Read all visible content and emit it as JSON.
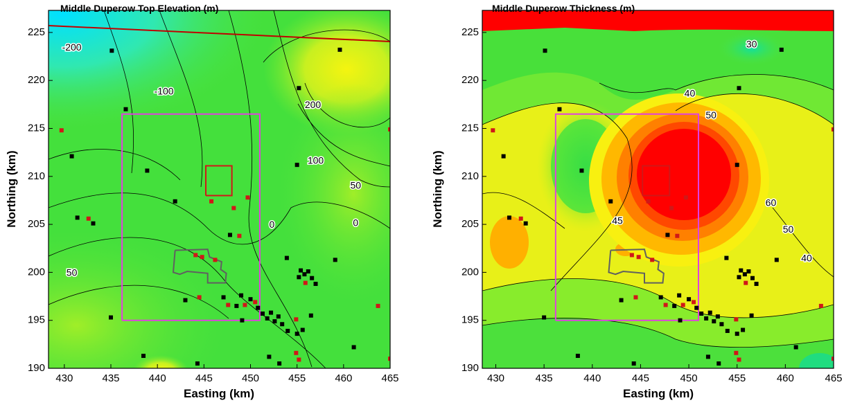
{
  "chart_data": [
    {
      "type": "scatter",
      "title": "Middle Duperow Top Elevation (m)",
      "x_label": "Easting (km)",
      "y_label": "Northing (km)",
      "xlim": [
        428.3,
        465
      ],
      "ylim": [
        190,
        227.3
      ],
      "xticks": [
        430,
        435,
        440,
        445,
        450,
        455,
        460,
        465
      ],
      "yticks": [
        190,
        195,
        200,
        205,
        210,
        215,
        220,
        225
      ],
      "series": [
        {
          "color": "#000000",
          "x": [
            435.1,
            459.6,
            455.2,
            436.6,
            430.8,
            438.9,
            455.0,
            441.9,
            431.4,
            433.1,
            447.8,
            459.1,
            455.4,
            455.8,
            456.2,
            456.6,
            457.0,
            455.2,
            443.0,
            448.5,
            449.1,
            449.0,
            450.0,
            450.8,
            451.3,
            451.8,
            452.2,
            452.6,
            453.0,
            453.4,
            454.0,
            455.0,
            455.6,
            456.5,
            452.0,
            461.1,
            438.5,
            444.3,
            435.0,
            453.9,
            453.1,
            447.1
          ],
          "y": [
            223.1,
            223.2,
            219.2,
            217.0,
            212.1,
            210.6,
            211.2,
            207.4,
            205.7,
            205.1,
            203.9,
            201.3,
            200.2,
            199.8,
            200.1,
            199.4,
            198.8,
            199.5,
            197.1,
            196.5,
            195.0,
            197.6,
            197.2,
            196.3,
            195.7,
            195.2,
            195.8,
            194.9,
            195.4,
            194.6,
            193.9,
            193.6,
            194.0,
            195.5,
            191.2,
            192.2,
            191.3,
            190.5,
            195.3,
            201.5,
            190.5,
            197.4
          ]
        },
        {
          "color": "#d01818",
          "x": [
            429.7,
            449.7,
            445.8,
            448.2,
            448.8,
            432.6,
            444.1,
            444.8,
            446.2,
            444.5,
            447.6,
            449.4,
            450.5,
            455.9,
            454.9,
            463.7,
            455.2,
            454.9,
            465.0,
            465.0
          ],
          "y": [
            214.8,
            207.8,
            207.4,
            206.7,
            203.8,
            205.6,
            201.8,
            201.6,
            201.3,
            197.4,
            196.6,
            196.6,
            196.9,
            198.9,
            195.1,
            196.5,
            190.9,
            191.6,
            191.0,
            214.9
          ]
        }
      ],
      "outlines": [
        {
          "color": "#e040e0",
          "x": [
            436.2,
            451,
            451,
            436.2,
            436.2
          ],
          "y": [
            195,
            195,
            216.5,
            216.5,
            195
          ]
        },
        {
          "color": "#d01818",
          "x": [
            445.2,
            448,
            448,
            445.2,
            445.2
          ],
          "y": [
            208,
            208,
            211.1,
            211.1,
            208
          ]
        },
        {
          "color": "#606060",
          "x": [
            441.9,
            445.4,
            445.6,
            446.9,
            446.8,
            447.4,
            447.3,
            445.4,
            445.4,
            443.2,
            442.4,
            441.7,
            441.9
          ],
          "y": [
            202.3,
            202.4,
            201.6,
            201.1,
            200.3,
            199.9,
            198.9,
            198.9,
            199.9,
            200.1,
            199.8,
            200.0,
            202.3
          ]
        }
      ],
      "annotations": [
        {
          "text": "-200",
          "x": 430.8,
          "y": 223.4
        },
        {
          "text": "-100",
          "x": 440.7,
          "y": 218.8
        },
        {
          "text": "200",
          "x": 456.7,
          "y": 217.4
        },
        {
          "text": "100",
          "x": 457.0,
          "y": 211.6
        },
        {
          "text": "50",
          "x": 461.3,
          "y": 209.0
        },
        {
          "text": "0",
          "x": 452.3,
          "y": 204.9
        },
        {
          "text": "0",
          "x": 461.3,
          "y": 205.1
        },
        {
          "text": "50",
          "x": 430.8,
          "y": 199.9
        }
      ]
    },
    {
      "type": "scatter",
      "title": "Middle Duperow Thickness (m)",
      "x_label": "Easting (km)",
      "y_label": "Northing (km)",
      "xlim": [
        428.6,
        465
      ],
      "ylim": [
        190,
        227.3
      ],
      "xticks": [
        430,
        435,
        440,
        445,
        450,
        455,
        460,
        465
      ],
      "yticks": [
        190,
        195,
        200,
        205,
        210,
        215,
        220,
        225
      ],
      "series": [
        {
          "color": "#000000",
          "x": [
            435.1,
            459.6,
            455.2,
            436.6,
            430.8,
            438.9,
            455.0,
            441.9,
            431.4,
            433.1,
            447.8,
            459.1,
            455.4,
            455.8,
            456.2,
            456.6,
            457.0,
            455.2,
            443.0,
            448.5,
            449.1,
            449.0,
            450.0,
            450.8,
            451.3,
            451.8,
            452.2,
            452.6,
            453.0,
            453.4,
            454.0,
            455.0,
            455.6,
            456.5,
            452.0,
            461.1,
            438.5,
            444.3,
            435.0,
            453.9,
            453.1,
            447.1
          ],
          "y": [
            223.1,
            223.2,
            219.2,
            217.0,
            212.1,
            210.6,
            211.2,
            207.4,
            205.7,
            205.1,
            203.9,
            201.3,
            200.2,
            199.8,
            200.1,
            199.4,
            198.8,
            199.5,
            197.1,
            196.5,
            195.0,
            197.6,
            197.2,
            196.3,
            195.7,
            195.2,
            195.8,
            194.9,
            195.4,
            194.6,
            193.9,
            193.6,
            194.0,
            195.5,
            191.2,
            192.2,
            191.3,
            190.5,
            195.3,
            201.5,
            190.5,
            197.4
          ]
        },
        {
          "color": "#d01818",
          "x": [
            429.7,
            449.7,
            445.8,
            448.2,
            448.8,
            432.6,
            444.1,
            444.8,
            446.2,
            444.5,
            447.6,
            449.4,
            450.5,
            455.9,
            454.9,
            463.7,
            455.2,
            454.9,
            465.0,
            465.0
          ],
          "y": [
            214.8,
            207.8,
            207.4,
            206.7,
            203.8,
            205.6,
            201.8,
            201.6,
            201.3,
            197.4,
            196.6,
            196.6,
            196.9,
            198.9,
            195.1,
            196.5,
            190.9,
            191.6,
            191.0,
            214.9
          ]
        }
      ],
      "outlines": [
        {
          "color": "#e040e0",
          "x": [
            436.2,
            451,
            451,
            436.2,
            436.2
          ],
          "y": [
            195,
            195,
            216.5,
            216.5,
            195
          ]
        },
        {
          "color": "#d01818",
          "x": [
            445.2,
            448,
            448,
            445.2,
            445.2
          ],
          "y": [
            208,
            208,
            211.1,
            211.1,
            208
          ]
        },
        {
          "color": "#606060",
          "x": [
            441.9,
            445.4,
            445.6,
            446.9,
            446.8,
            447.4,
            447.3,
            445.4,
            445.4,
            443.2,
            442.4,
            441.7,
            441.9
          ],
          "y": [
            202.3,
            202.4,
            201.6,
            201.1,
            200.3,
            199.9,
            198.9,
            198.9,
            199.9,
            200.1,
            199.8,
            200.0,
            202.3
          ]
        }
      ],
      "annotations": [
        {
          "text": "30",
          "x": 456.5,
          "y": 223.7
        },
        {
          "text": "40",
          "x": 450.1,
          "y": 218.6
        },
        {
          "text": "50",
          "x": 452.3,
          "y": 216.3
        },
        {
          "text": "45",
          "x": 442.6,
          "y": 205.3
        },
        {
          "text": "60",
          "x": 458.5,
          "y": 207.2
        },
        {
          "text": "50",
          "x": 460.3,
          "y": 204.4
        },
        {
          "text": "40",
          "x": 462.2,
          "y": 201.4
        }
      ]
    }
  ]
}
